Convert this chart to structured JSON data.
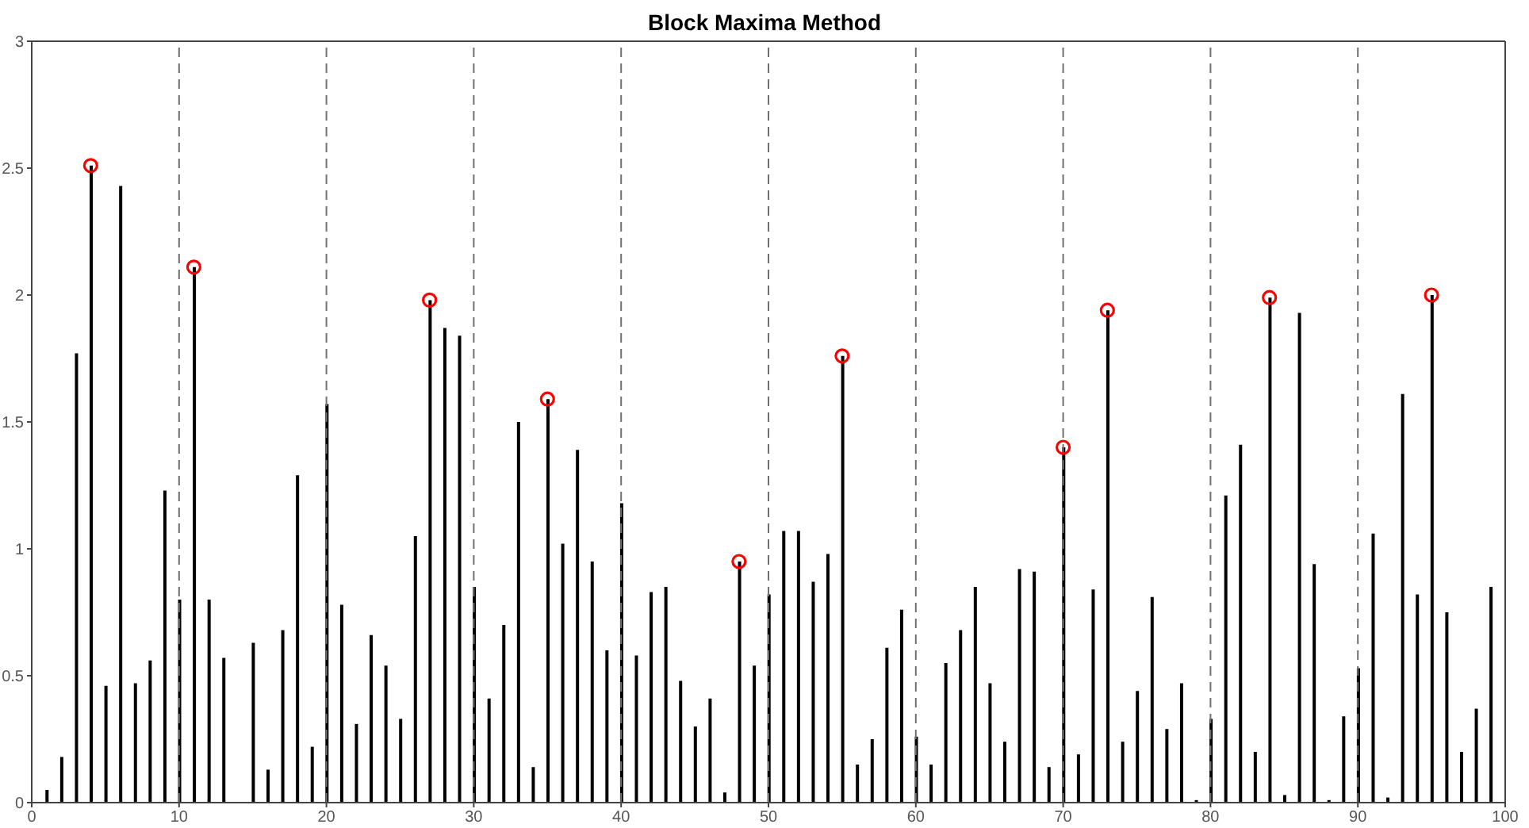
{
  "chart_data": {
    "type": "bar",
    "title": "Block Maxima Method",
    "x": [
      1,
      2,
      3,
      4,
      5,
      6,
      7,
      8,
      9,
      10,
      11,
      12,
      13,
      14,
      15,
      16,
      17,
      18,
      19,
      20,
      21,
      22,
      23,
      24,
      25,
      26,
      27,
      28,
      29,
      30,
      31,
      32,
      33,
      34,
      35,
      36,
      37,
      38,
      39,
      40,
      41,
      42,
      43,
      44,
      45,
      46,
      47,
      48,
      49,
      50,
      51,
      52,
      53,
      54,
      55,
      56,
      57,
      58,
      59,
      60,
      61,
      62,
      63,
      64,
      65,
      66,
      67,
      68,
      69,
      70,
      71,
      72,
      73,
      74,
      75,
      76,
      77,
      78,
      79,
      80,
      81,
      82,
      83,
      84,
      85,
      86,
      87,
      88,
      89,
      90,
      91,
      92,
      93,
      94,
      95,
      96,
      97,
      98,
      99
    ],
    "series": [
      {
        "color": "#000000",
        "values": [
          0.05,
          0.18,
          1.77,
          2.51,
          0.46,
          2.43,
          0.47,
          0.56,
          1.23,
          0.8,
          2.11,
          0.8,
          0.57,
          0,
          0.63,
          0.13,
          0.68,
          1.29,
          0.22,
          1.57,
          0.78,
          0.31,
          0.66,
          0.54,
          0.33,
          1.05,
          1.98,
          1.87,
          1.84,
          0.85,
          0.41,
          0.7,
          1.5,
          0.14,
          1.59,
          1.02,
          1.39,
          0.95,
          0.6,
          1.18,
          0.58,
          0.83,
          0.85,
          0.48,
          0.3,
          0.41,
          0.04,
          0.95,
          0.54,
          0.82,
          1.07,
          1.07,
          0.87,
          0.98,
          1.76,
          0.15,
          0.25,
          0.61,
          0.76,
          0.26,
          0.15,
          0.55,
          0.68,
          0.85,
          0.47,
          0.24,
          0.92,
          0.91,
          0.14,
          1.4,
          0.19,
          0.84,
          1.94,
          0.24,
          0.44,
          0.81,
          0.29,
          0.47,
          0.01,
          0.33,
          1.21,
          1.41,
          0.2,
          1.99,
          0.03,
          1.93,
          0.94,
          0.01,
          0.34,
          0.53,
          1.06,
          0.02,
          1.61,
          0.82,
          2.0,
          0.75,
          0.2,
          0.37,
          0.85
        ]
      },
      {
        "type": "scatter",
        "color": "#ff0000",
        "marker": "circle",
        "x": [
          4,
          11,
          27,
          35,
          48,
          55,
          70,
          73,
          84,
          95
        ],
        "values": [
          2.51,
          2.11,
          1.98,
          1.59,
          0.95,
          1.76,
          1.4,
          1.94,
          1.99,
          2.0
        ]
      }
    ],
    "xlim": [
      0,
      100
    ],
    "xticks": [
      0,
      10,
      20,
      30,
      40,
      50,
      60,
      70,
      80,
      90,
      100
    ],
    "ylim": [
      0,
      3
    ],
    "yticks": [
      0,
      0.5,
      1,
      1.5,
      2,
      2.5,
      3
    ],
    "ref_lines": [
      {
        "axis": "x",
        "value": 10,
        "color": "#707070",
        "line_style": "dashed"
      },
      {
        "axis": "x",
        "value": 20,
        "color": "#707070",
        "line_style": "dashed"
      },
      {
        "axis": "x",
        "value": 30,
        "color": "#707070",
        "line_style": "dashed"
      },
      {
        "axis": "x",
        "value": 40,
        "color": "#707070",
        "line_style": "dashed"
      },
      {
        "axis": "x",
        "value": 50,
        "color": "#707070",
        "line_style": "dashed"
      },
      {
        "axis": "x",
        "value": 60,
        "color": "#707070",
        "line_style": "dashed"
      },
      {
        "axis": "x",
        "value": 70,
        "color": "#707070",
        "line_style": "dashed"
      },
      {
        "axis": "x",
        "value": 80,
        "color": "#707070",
        "line_style": "dashed"
      },
      {
        "axis": "x",
        "value": 90,
        "color": "#707070",
        "line_style": "dashed"
      }
    ],
    "grid": false,
    "legend": false
  }
}
